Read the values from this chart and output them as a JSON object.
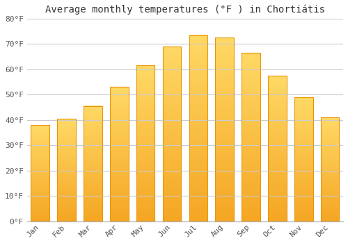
{
  "title": "Average monthly temperatures (°F ) in Chortiátis",
  "months": [
    "Jan",
    "Feb",
    "Mar",
    "Apr",
    "May",
    "Jun",
    "Jul",
    "Aug",
    "Sep",
    "Oct",
    "Nov",
    "Dec"
  ],
  "values": [
    38,
    40.5,
    45.5,
    53,
    61.5,
    69,
    73.5,
    72.5,
    66.5,
    57.5,
    49,
    41
  ],
  "bar_color_bottom": "#F5A623",
  "bar_color_top": "#FFD966",
  "bar_border_color": "#E8960A",
  "ylim": [
    0,
    80
  ],
  "yticks": [
    0,
    10,
    20,
    30,
    40,
    50,
    60,
    70,
    80
  ],
  "ytick_labels": [
    "0°F",
    "10°F",
    "20°F",
    "30°F",
    "40°F",
    "50°F",
    "60°F",
    "70°F",
    "80°F"
  ],
  "background_color": "#FFFFFF",
  "grid_color": "#CCCCCC",
  "title_fontsize": 10,
  "tick_fontsize": 8,
  "bar_width": 0.7
}
